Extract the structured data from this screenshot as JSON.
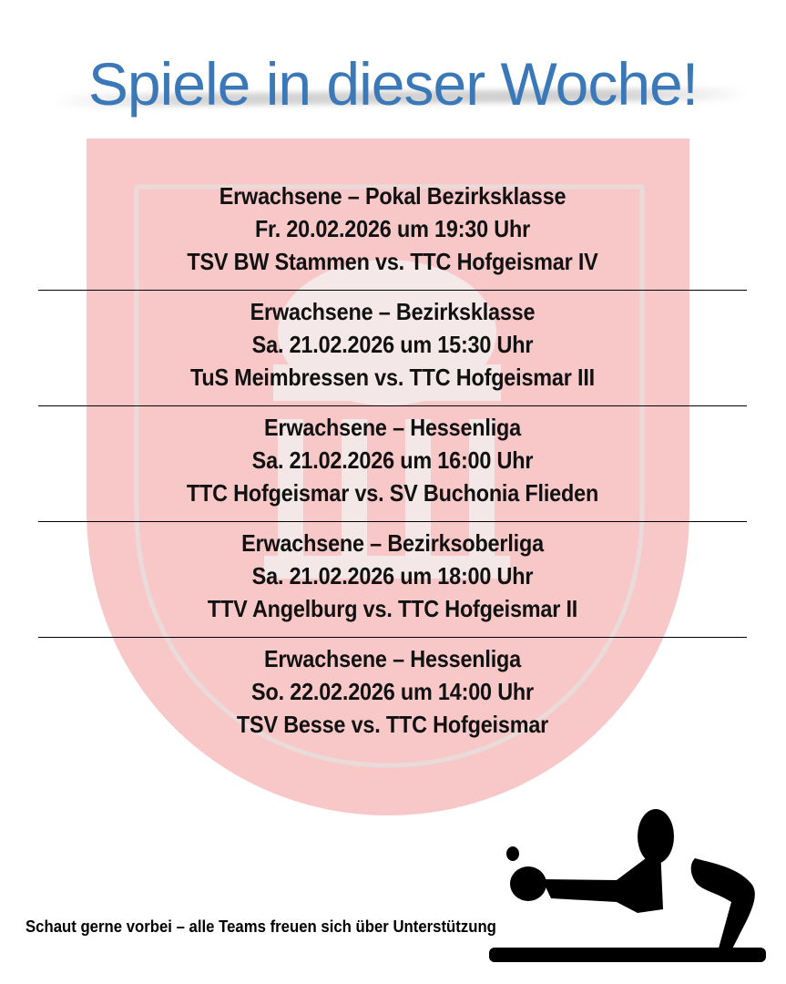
{
  "title": "Spiele in dieser Woche!",
  "colors": {
    "title": "#3a78b8",
    "shield": "#f8c8c8"
  },
  "matches": [
    {
      "league": "Erwachsene – Pokal Bezirksklasse",
      "datetime": "Fr. 20.02.2026 um 19:30 Uhr",
      "teams": "TSV BW Stammen vs. TTC Hofgeismar IV"
    },
    {
      "league": "Erwachsene – Bezirksklasse",
      "datetime": "Sa. 21.02.2026 um 15:30 Uhr",
      "teams": "TuS Meimbressen vs. TTC Hofgeismar III"
    },
    {
      "league": "Erwachsene – Hessenliga",
      "datetime": "Sa. 21.02.2026 um 16:00 Uhr",
      "teams": "TTC Hofgeismar vs. SV Buchonia Flieden"
    },
    {
      "league": "Erwachsene – Bezirksoberliga",
      "datetime": "Sa. 21.02.2026 um 18:00 Uhr",
      "teams": "TTV Angelburg vs. TTC Hofgeismar II"
    },
    {
      "league": "Erwachsene – Hessenliga",
      "datetime": "So. 22.02.2026 um 14:00 Uhr",
      "teams": "TSV Besse vs. TTC Hofgeismar"
    }
  ],
  "footer": "Schaut gerne vorbei – alle Teams freuen sich über Unterstützung",
  "watermark_logo_text": "TTC 1967 HOFGEISMAR"
}
